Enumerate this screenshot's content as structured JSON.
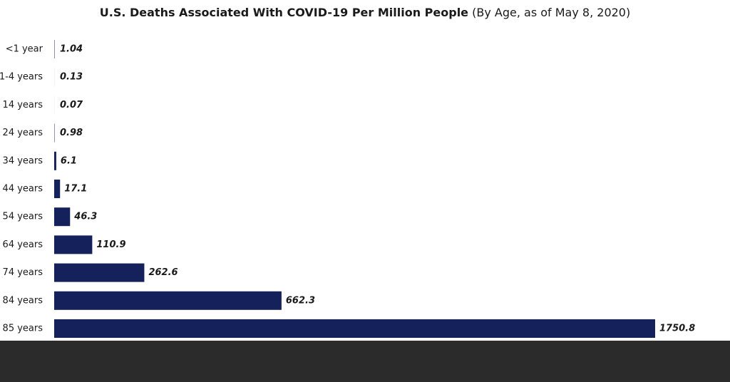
{
  "chart_data": {
    "type": "hbar",
    "title": "U.S. Deaths Associated With COVID-19 Per Million People",
    "subtitle": "(By Age, as of May 8, 2020)",
    "categories": [
      "<1 year",
      "1-4 years",
      "14 years",
      "24 years",
      "34 years",
      "44 years",
      "54 years",
      "64 years",
      "74 years",
      "84 years",
      "85 years"
    ],
    "values": [
      1.04,
      0.13,
      0.07,
      0.98,
      6.1,
      17.1,
      46.3,
      110.9,
      262.6,
      662.3,
      1750.8
    ],
    "color": "#14215a"
  }
}
